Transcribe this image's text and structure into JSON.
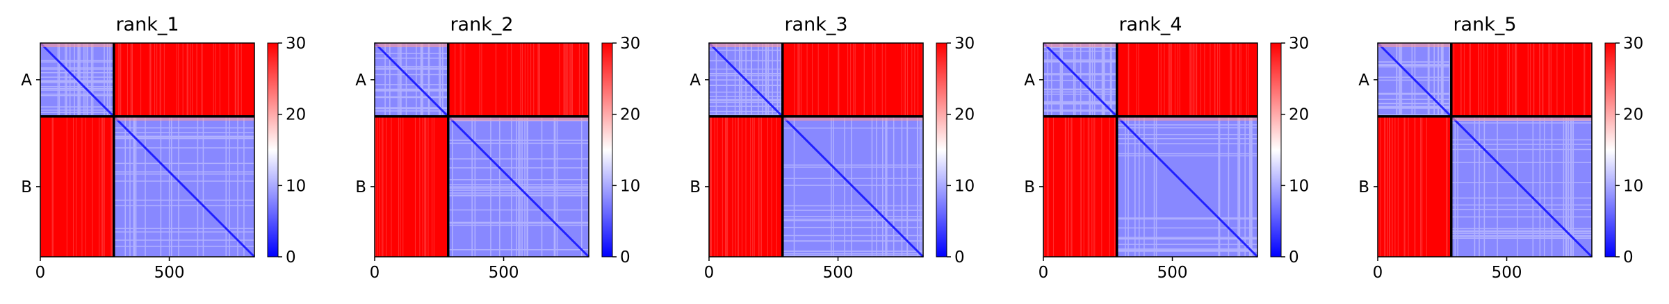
{
  "figure": {
    "colormap": "bwr",
    "colors": {
      "low": "#0000ff",
      "mid": "#ffffff",
      "high": "#ff0000",
      "separator": "#000000"
    }
  },
  "chart_data": [
    {
      "type": "heatmap",
      "title": "rank_1",
      "x_ticks": [
        0,
        500
      ],
      "x_tick_labels": [
        "0",
        "500"
      ],
      "xlim": [
        0,
        830
      ],
      "y_tick_labels": [
        "A",
        "B"
      ],
      "chains": [
        {
          "name": "A",
          "length": 285
        },
        {
          "name": "B",
          "length": 545
        }
      ],
      "colorbar": {
        "min": 0,
        "max": 30,
        "ticks": [
          0,
          10,
          20,
          30
        ],
        "tick_labels": [
          "0",
          "10",
          "20",
          "30"
        ]
      },
      "intra_chain_mean_approx": 8,
      "inter_chain_value_approx": 30
    },
    {
      "type": "heatmap",
      "title": "rank_2",
      "x_ticks": [
        0,
        500
      ],
      "x_tick_labels": [
        "0",
        "500"
      ],
      "xlim": [
        0,
        830
      ],
      "y_tick_labels": [
        "A",
        "B"
      ],
      "chains": [
        {
          "name": "A",
          "length": 285
        },
        {
          "name": "B",
          "length": 545
        }
      ],
      "colorbar": {
        "min": 0,
        "max": 30,
        "ticks": [
          0,
          10,
          20,
          30
        ],
        "tick_labels": [
          "0",
          "10",
          "20",
          "30"
        ]
      },
      "intra_chain_mean_approx": 8,
      "inter_chain_value_approx": 30
    },
    {
      "type": "heatmap",
      "title": "rank_3",
      "x_ticks": [
        0,
        500
      ],
      "x_tick_labels": [
        "0",
        "500"
      ],
      "xlim": [
        0,
        830
      ],
      "y_tick_labels": [
        "A",
        "B"
      ],
      "chains": [
        {
          "name": "A",
          "length": 285
        },
        {
          "name": "B",
          "length": 545
        }
      ],
      "colorbar": {
        "min": 0,
        "max": 30,
        "ticks": [
          0,
          10,
          20,
          30
        ],
        "tick_labels": [
          "0",
          "10",
          "20",
          "30"
        ]
      },
      "intra_chain_mean_approx": 8,
      "inter_chain_value_approx": 30
    },
    {
      "type": "heatmap",
      "title": "rank_4",
      "x_ticks": [
        0,
        500
      ],
      "x_tick_labels": [
        "0",
        "500"
      ],
      "xlim": [
        0,
        830
      ],
      "y_tick_labels": [
        "A",
        "B"
      ],
      "chains": [
        {
          "name": "A",
          "length": 285
        },
        {
          "name": "B",
          "length": 545
        }
      ],
      "colorbar": {
        "min": 0,
        "max": 30,
        "ticks": [
          0,
          10,
          20,
          30
        ],
        "tick_labels": [
          "0",
          "10",
          "20",
          "30"
        ]
      },
      "intra_chain_mean_approx": 8,
      "inter_chain_value_approx": 30
    },
    {
      "type": "heatmap",
      "title": "rank_5",
      "x_ticks": [
        0,
        500
      ],
      "x_tick_labels": [
        "0",
        "500"
      ],
      "xlim": [
        0,
        830
      ],
      "y_tick_labels": [
        "A",
        "B"
      ],
      "chains": [
        {
          "name": "A",
          "length": 285
        },
        {
          "name": "B",
          "length": 545
        }
      ],
      "colorbar": {
        "min": 0,
        "max": 30,
        "ticks": [
          0,
          10,
          20,
          30
        ],
        "tick_labels": [
          "0",
          "10",
          "20",
          "30"
        ]
      },
      "intra_chain_mean_approx": 8,
      "inter_chain_value_approx": 30
    }
  ]
}
